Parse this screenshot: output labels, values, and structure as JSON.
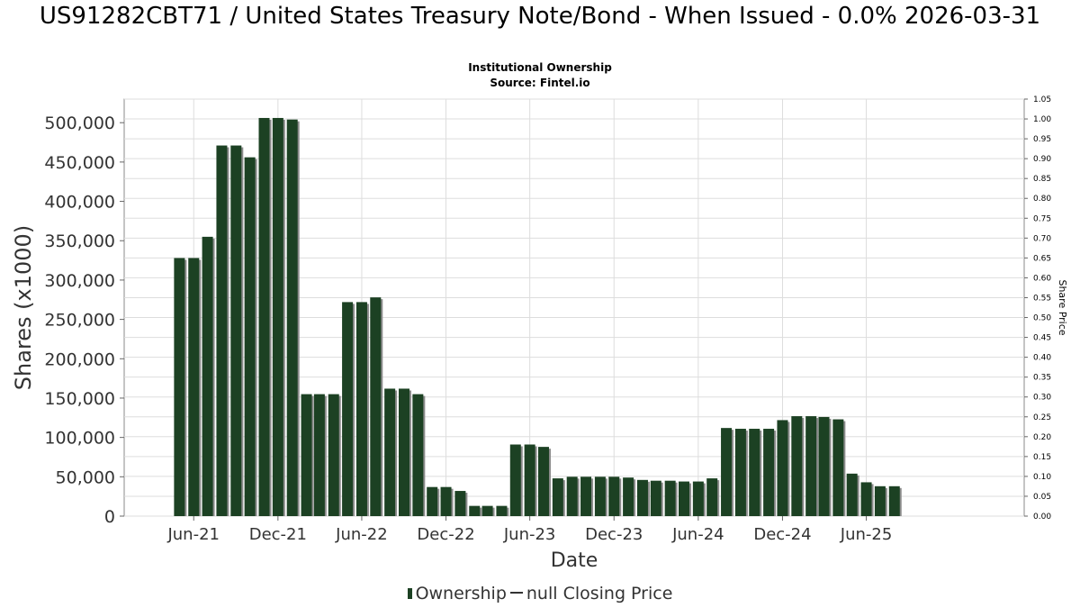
{
  "title": "US91282CBT71 / United States Treasury Note/Bond - When Issued - 0.0% 2026-03-31",
  "subtitle_1": "Institutional Ownership",
  "subtitle_2": "Source: Fintel.io",
  "legend": {
    "series_1": "Ownership",
    "series_2": "null Closing Price"
  },
  "colors": {
    "bar": "#1c4123",
    "bar_shadow": "#8c8c8c",
    "grid": "#dddddd"
  },
  "chart_data": {
    "type": "bar",
    "xlabel": "Date",
    "ylabel": "Shares (x1000)",
    "y2label": "Share Price",
    "ylim": [
      0,
      530000
    ],
    "y2lim": [
      0,
      1.05
    ],
    "yticks": [
      0,
      50000,
      100000,
      150000,
      200000,
      250000,
      300000,
      350000,
      400000,
      450000,
      500000
    ],
    "ytick_labels": [
      "0",
      "50,000",
      "100,000",
      "150,000",
      "200,000",
      "250,000",
      "300,000",
      "350,000",
      "400,000",
      "450,000",
      "500,000"
    ],
    "y2ticks": [
      "0.00",
      "0.05",
      "0.10",
      "0.15",
      "0.20",
      "0.25",
      "0.30",
      "0.35",
      "0.40",
      "0.45",
      "0.50",
      "0.55",
      "0.60",
      "0.65",
      "0.70",
      "0.75",
      "0.80",
      "0.85",
      "0.90",
      "0.95",
      "1.00",
      "1.05"
    ],
    "xlim": [
      "2021-01-01",
      "2026-05-10"
    ],
    "xticks": [
      {
        "label": "Jun-21",
        "date": "2021-06-01"
      },
      {
        "label": "Dec-21",
        "date": "2021-12-01"
      },
      {
        "label": "Jun-22",
        "date": "2022-06-01"
      },
      {
        "label": "Dec-22",
        "date": "2022-12-01"
      },
      {
        "label": "Jun-23",
        "date": "2023-06-01"
      },
      {
        "label": "Dec-23",
        "date": "2023-12-01"
      },
      {
        "label": "Jun-24",
        "date": "2024-06-01"
      },
      {
        "label": "Dec-24",
        "date": "2024-12-01"
      },
      {
        "label": "Jun-25",
        "date": "2025-06-01"
      }
    ],
    "grid": true,
    "legend_position": "bottom",
    "series": [
      {
        "name": "Ownership",
        "points": [
          {
            "x": "2021-05-01",
            "y": 328000
          },
          {
            "x": "2021-06-01",
            "y": 328000
          },
          {
            "x": "2021-07-01",
            "y": 355000
          },
          {
            "x": "2021-08-01",
            "y": 471000
          },
          {
            "x": "2021-09-01",
            "y": 471000
          },
          {
            "x": "2021-10-01",
            "y": 456000
          },
          {
            "x": "2021-11-01",
            "y": 506000
          },
          {
            "x": "2021-12-01",
            "y": 506000
          },
          {
            "x": "2022-01-01",
            "y": 504000
          },
          {
            "x": "2022-02-01",
            "y": 155000
          },
          {
            "x": "2022-03-01",
            "y": 155000
          },
          {
            "x": "2022-04-01",
            "y": 155000
          },
          {
            "x": "2022-05-01",
            "y": 272000
          },
          {
            "x": "2022-06-01",
            "y": 272000
          },
          {
            "x": "2022-07-01",
            "y": 278000
          },
          {
            "x": "2022-08-01",
            "y": 162000
          },
          {
            "x": "2022-09-01",
            "y": 162000
          },
          {
            "x": "2022-10-01",
            "y": 155000
          },
          {
            "x": "2022-11-01",
            "y": 37000
          },
          {
            "x": "2022-12-01",
            "y": 37000
          },
          {
            "x": "2023-01-01",
            "y": 32000
          },
          {
            "x": "2023-02-01",
            "y": 13000
          },
          {
            "x": "2023-03-01",
            "y": 13000
          },
          {
            "x": "2023-04-01",
            "y": 13000
          },
          {
            "x": "2023-05-01",
            "y": 91000
          },
          {
            "x": "2023-06-01",
            "y": 91000
          },
          {
            "x": "2023-07-01",
            "y": 88000
          },
          {
            "x": "2023-08-01",
            "y": 48000
          },
          {
            "x": "2023-09-01",
            "y": 50000
          },
          {
            "x": "2023-10-01",
            "y": 50000
          },
          {
            "x": "2023-11-01",
            "y": 50000
          },
          {
            "x": "2023-12-01",
            "y": 50000
          },
          {
            "x": "2024-01-01",
            "y": 49000
          },
          {
            "x": "2024-02-01",
            "y": 46000
          },
          {
            "x": "2024-03-01",
            "y": 45000
          },
          {
            "x": "2024-04-01",
            "y": 45000
          },
          {
            "x": "2024-05-01",
            "y": 44000
          },
          {
            "x": "2024-06-01",
            "y": 44000
          },
          {
            "x": "2024-07-01",
            "y": 48000
          },
          {
            "x": "2024-08-01",
            "y": 112000
          },
          {
            "x": "2024-09-01",
            "y": 111000
          },
          {
            "x": "2024-10-01",
            "y": 111000
          },
          {
            "x": "2024-11-01",
            "y": 111000
          },
          {
            "x": "2024-12-01",
            "y": 122000
          },
          {
            "x": "2025-01-01",
            "y": 127000
          },
          {
            "x": "2025-02-01",
            "y": 127000
          },
          {
            "x": "2025-03-01",
            "y": 126000
          },
          {
            "x": "2025-04-01",
            "y": 123000
          },
          {
            "x": "2025-05-01",
            "y": 54000
          },
          {
            "x": "2025-06-01",
            "y": 43000
          },
          {
            "x": "2025-07-01",
            "y": 38000
          },
          {
            "x": "2025-08-01",
            "y": 38000
          }
        ]
      }
    ]
  }
}
